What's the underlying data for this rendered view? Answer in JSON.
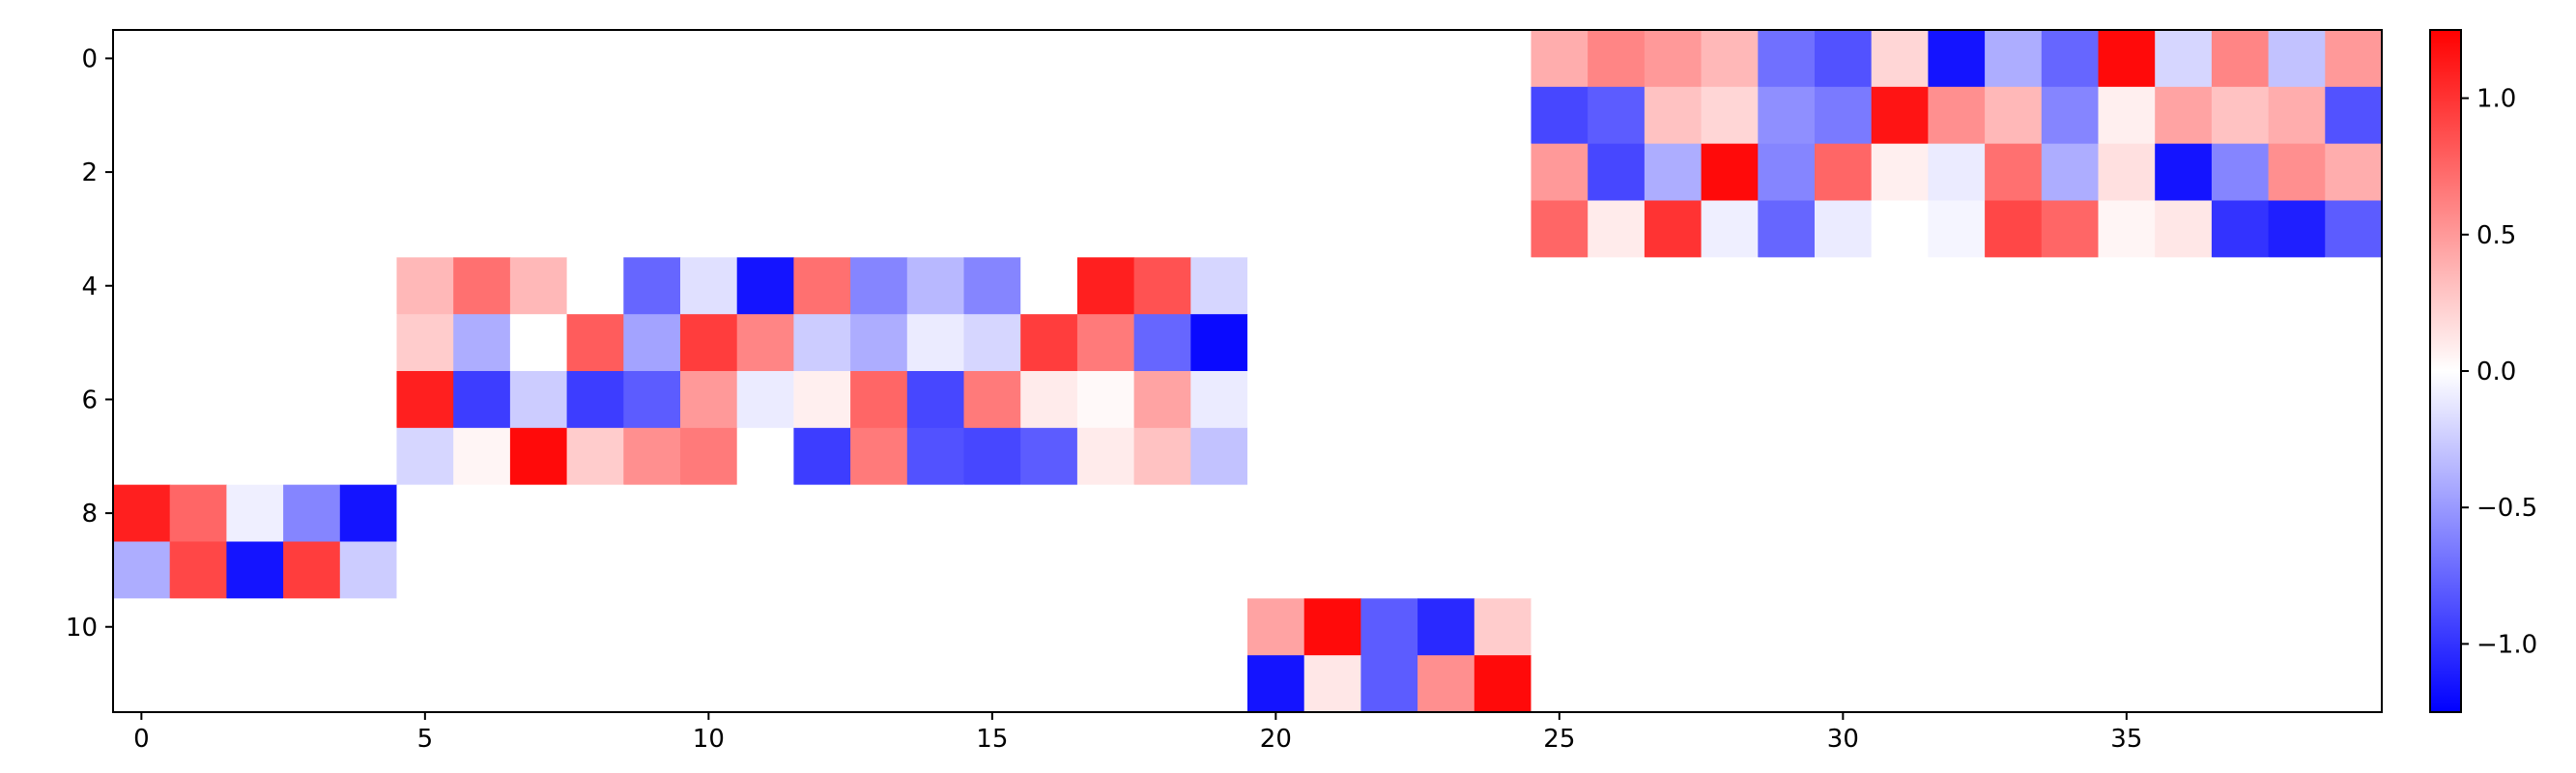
{
  "chart_data": {
    "type": "heatmap",
    "colormap": "bwr",
    "vmin": -1.25,
    "vmax": 1.25,
    "n_rows": 12,
    "n_cols": 40,
    "x_ticks": [
      0,
      5,
      10,
      15,
      20,
      25,
      30,
      35
    ],
    "y_ticks": [
      0,
      2,
      4,
      6,
      8,
      10
    ],
    "colorbar": {
      "placement": "right",
      "ticks": [
        1.0,
        0.5,
        0.0,
        -0.5,
        -1.0
      ],
      "tick_labels": [
        "1.0",
        "0.5",
        "0.0",
        "−0.5",
        "−1.0"
      ]
    },
    "blocks": [
      {
        "row_start": 0,
        "col_start": 25,
        "values": [
          [
            0.4,
            0.6,
            0.5,
            0.35,
            -0.7,
            -0.85,
            0.2,
            -1.15,
            -0.4,
            -0.75,
            1.2,
            -0.2,
            0.6,
            -0.3,
            0.5
          ],
          [
            -0.9,
            -0.8,
            0.3,
            0.2,
            -0.55,
            -0.65,
            1.15,
            0.55,
            0.35,
            -0.6,
            0.08,
            0.45,
            0.3,
            0.4,
            -0.85
          ],
          [
            0.5,
            -0.9,
            -0.4,
            1.2,
            -0.6,
            0.75,
            0.08,
            -0.1,
            0.7,
            -0.4,
            0.15,
            -1.15,
            -0.6,
            0.55,
            0.4
          ],
          [
            0.75,
            0.1,
            1.0,
            -0.08,
            -0.75,
            -0.1,
            0.0,
            -0.05,
            0.9,
            0.75,
            0.05,
            0.12,
            -1.0,
            -1.1,
            -0.8
          ]
        ]
      },
      {
        "row_start": 4,
        "col_start": 5,
        "values": [
          [
            0.35,
            0.7,
            0.35,
            0.0,
            -0.75,
            -0.15,
            -1.15,
            0.7,
            -0.6,
            -0.35,
            -0.6,
            0.0,
            1.1,
            0.85,
            -0.2
          ],
          [
            0.25,
            -0.4,
            0.0,
            0.8,
            -0.45,
            0.95,
            0.6,
            -0.25,
            -0.4,
            -0.1,
            -0.2,
            0.95,
            0.65,
            -0.75,
            -1.2
          ],
          [
            1.1,
            -0.95,
            -0.25,
            -0.95,
            -0.8,
            0.5,
            -0.1,
            0.08,
            0.75,
            -0.9,
            0.65,
            0.1,
            0.03,
            0.45,
            -0.1
          ],
          [
            -0.2,
            0.05,
            1.2,
            0.25,
            0.55,
            0.65,
            0.0,
            -0.95,
            0.65,
            -0.85,
            -0.9,
            -0.8,
            0.1,
            0.3,
            -0.3
          ]
        ]
      },
      {
        "row_start": 8,
        "col_start": 0,
        "values": [
          [
            1.1,
            0.75,
            -0.08,
            -0.6,
            -1.15
          ],
          [
            -0.4,
            0.9,
            -1.15,
            0.95,
            -0.25
          ]
        ]
      },
      {
        "row_start": 10,
        "col_start": 20,
        "values": [
          [
            0.45,
            1.2,
            -0.8,
            -1.05,
            0.25
          ],
          [
            -1.15,
            0.12,
            -0.8,
            0.55,
            1.2
          ]
        ]
      }
    ]
  }
}
